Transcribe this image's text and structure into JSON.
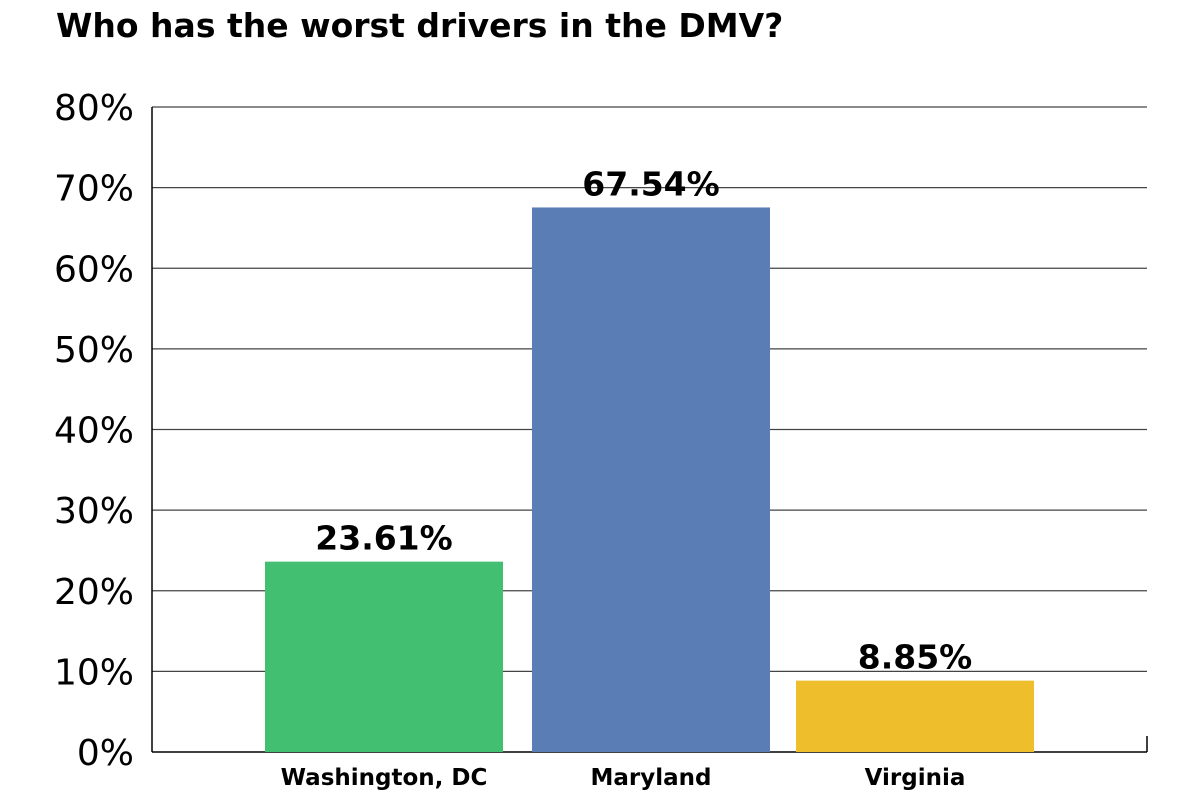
{
  "colors": {
    "background": "#ffffff",
    "grid": "#444444",
    "axis": "#000000",
    "text": "#000000"
  },
  "chart_data": {
    "type": "bar",
    "title": "Who has the worst drivers in the DMV?",
    "xlabel": "",
    "ylabel": "",
    "categories": [
      "Washington, DC",
      "Maryland",
      "Virginia"
    ],
    "values": [
      23.61,
      67.54,
      8.85
    ],
    "value_labels": [
      "23.61%",
      "67.54%",
      "8.85%"
    ],
    "bar_colors": [
      "#43bf71",
      "#5a7db5",
      "#efbe2c"
    ],
    "ylim": [
      0,
      80
    ],
    "yticks": [
      0,
      10,
      20,
      30,
      40,
      50,
      60,
      70,
      80
    ],
    "ytick_labels": [
      "0%",
      "10%",
      "20%",
      "30%",
      "40%",
      "50%",
      "60%",
      "70%",
      "80%"
    ],
    "grid": true,
    "legend": "none"
  }
}
